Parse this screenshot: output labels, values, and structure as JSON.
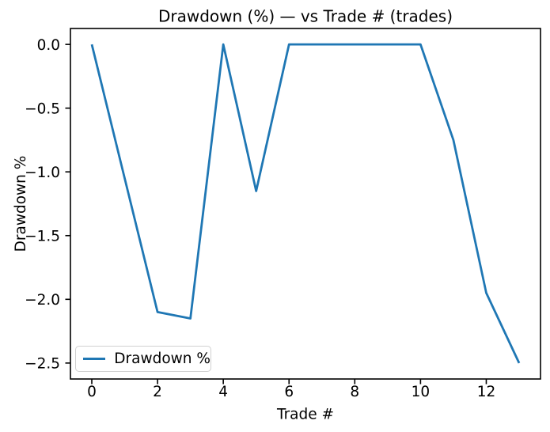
{
  "chart_data": {
    "type": "line",
    "title": "Drawdown (%) — vs Trade # (trades)",
    "xlabel": "Trade #",
    "ylabel": "Drawdown %",
    "x": [
      0,
      1,
      2,
      3,
      4,
      5,
      6,
      7,
      8,
      9,
      10,
      11,
      12,
      13
    ],
    "series": [
      {
        "name": "Drawdown %",
        "color": "#1f77b4",
        "values": [
          0.0,
          -1.05,
          -2.1,
          -2.15,
          0.0,
          -1.15,
          0.0,
          0.0,
          0.0,
          0.0,
          0.0,
          -0.75,
          -1.95,
          -2.5
        ]
      }
    ],
    "xlim": [
      -0.65,
      13.65
    ],
    "ylim": [
      -2.625,
      0.125
    ],
    "xticks": [
      0,
      2,
      4,
      6,
      8,
      10,
      12
    ],
    "yticks": [
      0.0,
      -0.5,
      -1.0,
      -1.5,
      -2.0,
      -2.5
    ],
    "grid": false,
    "legend": {
      "position": "lower left",
      "entries": [
        "Drawdown %"
      ]
    }
  },
  "colors": {
    "line": "#1f77b4",
    "text": "#000000",
    "spine": "#000000",
    "legend_border": "#d0d0d0",
    "background": "#ffffff"
  }
}
